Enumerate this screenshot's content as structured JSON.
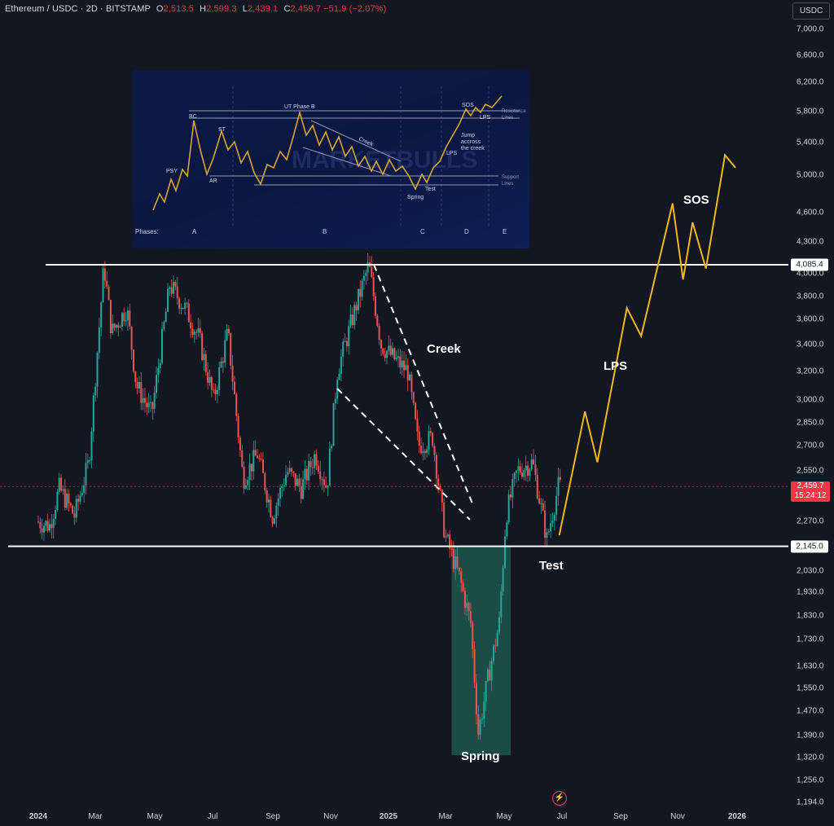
{
  "header": {
    "symbol": "Ethereum / USDC · 2D · BITSTAMP",
    "o_label": "O",
    "o_value": "2,513.5",
    "h_label": "H",
    "h_value": "2,599.3",
    "l_label": "L",
    "l_value": "2,439.1",
    "c_label": "C",
    "c_value": "2,459.7",
    "change": "−51.9 (−2.07%)"
  },
  "currency_badge": "USDC",
  "colors": {
    "background": "#131722",
    "up": "#26a69a",
    "down": "#ef5350",
    "projection": "#f2b61f",
    "level": "#ffffff",
    "spring_zone": "#1f5f56",
    "price_label": "#f23645"
  },
  "chart_data": [
    {
      "type": "candlestick",
      "title": "",
      "scale": "log",
      "ylim": [
        1194,
        7000
      ],
      "y_ticks": [
        "7,000.0",
        "6,600.0",
        "6,200.0",
        "5,800.0",
        "5,400.0",
        "5,000.0",
        "4,600.0",
        "4,300.0",
        "4,000.0",
        "3,800.0",
        "3,600.0",
        "3,400.0",
        "3,200.0",
        "3,000.0",
        "2,850.0",
        "2,700.0",
        "2,550.0",
        "2,270.0",
        "2,030.0",
        "1,930.0",
        "1,830.0",
        "1,730.0",
        "1,630.0",
        "1,550.0",
        "1,470.0",
        "1,390.0",
        "1,320.0",
        "1,256.0",
        "1,194.0"
      ],
      "x_ticks": [
        "2024",
        "Mar",
        "May",
        "Jul",
        "Sep",
        "Nov",
        "2025",
        "Mar",
        "May",
        "Jul",
        "Sep",
        "Nov",
        "2026"
      ],
      "price_path": [
        {
          "date": "2024-01-01",
          "price": 2270
        },
        {
          "date": "2024-01-15",
          "price": 2250
        },
        {
          "date": "2024-01-25",
          "price": 2450
        },
        {
          "date": "2024-02-10",
          "price": 2300
        },
        {
          "date": "2024-02-25",
          "price": 2600
        },
        {
          "date": "2024-03-12",
          "price": 4085
        },
        {
          "date": "2024-03-20",
          "price": 3500
        },
        {
          "date": "2024-04-05",
          "price": 3700
        },
        {
          "date": "2024-04-15",
          "price": 3100
        },
        {
          "date": "2024-05-01",
          "price": 2900
        },
        {
          "date": "2024-05-20",
          "price": 3900
        },
        {
          "date": "2024-06-05",
          "price": 3700
        },
        {
          "date": "2024-06-20",
          "price": 3450
        },
        {
          "date": "2024-07-05",
          "price": 3000
        },
        {
          "date": "2024-07-20",
          "price": 3500
        },
        {
          "date": "2024-08-05",
          "price": 2500
        },
        {
          "date": "2024-08-20",
          "price": 2650
        },
        {
          "date": "2024-09-05",
          "price": 2300
        },
        {
          "date": "2024-09-20",
          "price": 2550
        },
        {
          "date": "2024-10-05",
          "price": 2450
        },
        {
          "date": "2024-10-20",
          "price": 2650
        },
        {
          "date": "2024-11-01",
          "price": 2450
        },
        {
          "date": "2024-11-12",
          "price": 3200
        },
        {
          "date": "2024-12-01",
          "price": 3700
        },
        {
          "date": "2024-12-15",
          "price": 4085
        },
        {
          "date": "2024-12-28",
          "price": 3400
        },
        {
          "date": "2025-01-10",
          "price": 3300
        },
        {
          "date": "2025-01-25",
          "price": 3200
        },
        {
          "date": "2025-02-05",
          "price": 2700
        },
        {
          "date": "2025-02-20",
          "price": 2750
        },
        {
          "date": "2025-03-05",
          "price": 2200
        },
        {
          "date": "2025-03-20",
          "price": 2000
        },
        {
          "date": "2025-04-01",
          "price": 1800
        },
        {
          "date": "2025-04-09",
          "price": 1400
        },
        {
          "date": "2025-04-20",
          "price": 1600
        },
        {
          "date": "2025-05-01",
          "price": 1800
        },
        {
          "date": "2025-05-08",
          "price": 2300
        },
        {
          "date": "2025-05-20",
          "price": 2550
        },
        {
          "date": "2025-06-05",
          "price": 2600
        },
        {
          "date": "2025-06-20",
          "price": 2180
        },
        {
          "date": "2025-07-02",
          "price": 2459.7
        }
      ],
      "projection_path": [
        {
          "date": "2025-07-01",
          "price": 2200
        },
        {
          "date": "2025-07-28",
          "price": 2920
        },
        {
          "date": "2025-08-10",
          "price": 2600
        },
        {
          "date": "2025-09-10",
          "price": 3700
        },
        {
          "date": "2025-09-25",
          "price": 3470
        },
        {
          "date": "2025-10-28",
          "price": 4700
        },
        {
          "date": "2025-11-08",
          "price": 3950
        },
        {
          "date": "2025-11-18",
          "price": 4500
        },
        {
          "date": "2025-12-02",
          "price": 4050
        },
        {
          "date": "2025-12-22",
          "price": 5250
        },
        {
          "date": "2026-01-02",
          "price": 5100
        }
      ],
      "levels": [
        {
          "price": 4085.4,
          "label": "4,085.4"
        },
        {
          "price": 2145.0,
          "label": "2,145.0"
        }
      ],
      "last_price": {
        "value": "2,459.7",
        "countdown": "15:24:12"
      },
      "annotations": [
        "Creek",
        "LPS",
        "SOS",
        "Test",
        "Spring"
      ]
    },
    {
      "type": "line",
      "title": "",
      "description_labels": {
        "events": [
          "PSY",
          "BC",
          "ST",
          "AR",
          "UT Phase B",
          "Creek",
          "SOS",
          "LPS",
          "Jump accross the creek",
          "LPS",
          "Test",
          "Spring"
        ],
        "lines": [
          "Resistance Lines",
          "Support Lines"
        ],
        "phases_label": "Phases:",
        "phases": [
          "A",
          "B",
          "C",
          "D",
          "E"
        ],
        "watermark": "MARKETBULLS"
      }
    }
  ],
  "inset_labels": {
    "psy": "PSY",
    "bc": "BC",
    "st": "ST",
    "ar": "AR",
    "ut": "UT Phase B",
    "creek": "Creek",
    "sos": "SOS",
    "lps_top": "LPS",
    "jump1": "Jump",
    "jump2": "accross",
    "jump3": "the creek",
    "lps_mid": "LPS",
    "test": "Test",
    "spring": "Spring",
    "resistance1": "Resistance",
    "resistance2": "Lines",
    "support1": "Support",
    "support2": "Lines",
    "phases": "Phases:",
    "phase_a": "A",
    "phase_b": "B",
    "phase_c": "C",
    "phase_d": "D",
    "phase_e": "E",
    "watermark": "MARKETBULLS"
  },
  "annotation_labels": {
    "creek": "Creek",
    "lps": "LPS",
    "sos": "SOS",
    "test": "Test",
    "spring": "Spring"
  },
  "bolt_icon": "lightning-icon"
}
